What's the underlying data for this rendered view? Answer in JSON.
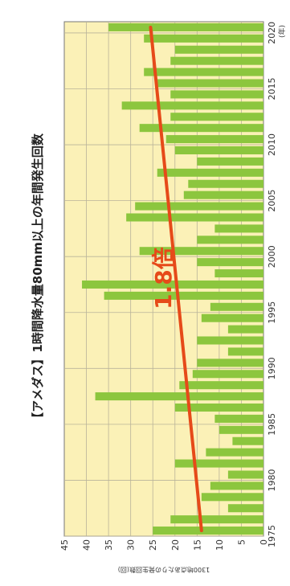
{
  "chart_data": {
    "type": "bar",
    "title": "【アメダス】1時間降水量80mm以上の年間発生回数",
    "ylabel": "1300地点あたりの発生回数(回)",
    "xlabel": "",
    "year_unit": "(年)",
    "orientation": "rotated-90",
    "ylim": [
      0,
      45
    ],
    "y_ticks": [
      "0",
      "5",
      "10",
      "15",
      "20",
      "25",
      "30",
      "35",
      "40",
      "45"
    ],
    "x_ticks": [
      "1975",
      "1980",
      "1985",
      "1990",
      "1995",
      "2000",
      "2005",
      "2010",
      "2015",
      "2020"
    ],
    "categories": [
      "1976",
      "1977",
      "1978",
      "1979",
      "1980",
      "1981",
      "1982",
      "1983",
      "1984",
      "1985",
      "1986",
      "1987",
      "1988",
      "1989",
      "1990",
      "1991",
      "1992",
      "1993",
      "1994",
      "1995",
      "1996",
      "1997",
      "1998",
      "1999",
      "2000",
      "2001",
      "2002",
      "2003",
      "2004",
      "2005",
      "2006",
      "2007",
      "2008",
      "2009",
      "2010",
      "2011",
      "2012",
      "2013",
      "2014",
      "2015",
      "2016",
      "2017",
      "2018",
      "2019",
      "2020",
      "2021"
    ],
    "values": [
      25,
      21,
      8,
      14,
      12,
      8,
      20,
      13,
      7,
      10,
      11,
      20,
      38,
      19,
      16,
      15,
      8,
      15,
      8,
      14,
      12,
      36,
      41,
      11,
      15,
      28,
      15,
      11,
      31,
      29,
      18,
      17,
      24,
      15,
      20,
      22,
      28,
      21,
      32,
      21,
      24,
      27,
      21,
      20,
      27,
      35
    ],
    "trend": {
      "label": "1.8倍",
      "start": 14,
      "end": 25.5,
      "color": "#e64a19"
    },
    "bar_color": "#8cc63e",
    "plot_bg": "#fbf1b7",
    "grid": true
  }
}
